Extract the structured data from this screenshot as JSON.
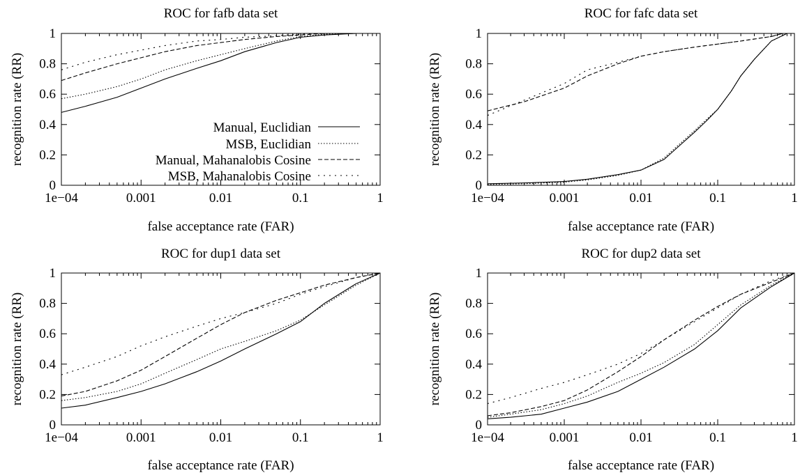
{
  "chart_data": [
    {
      "type": "line",
      "title": "ROC for fafb data set",
      "xlabel": "false acceptance rate (FAR)",
      "ylabel": "recognition rate (RR)",
      "xscale": "log",
      "xlim": [
        0.0001,
        1
      ],
      "ylim": [
        0,
        1
      ],
      "xticks": [
        "1e−04",
        "0.001",
        "0.01",
        "0.1",
        "1"
      ],
      "yticks": [
        "0",
        "0.2",
        "0.4",
        "0.6",
        "0.8",
        "1"
      ],
      "grid": false,
      "legend": "bottom-right",
      "series": [
        {
          "name": "Manual, Euclidian",
          "dash": "solid",
          "x": [
            0.0001,
            0.0002,
            0.0005,
            0.001,
            0.002,
            0.005,
            0.01,
            0.02,
            0.05,
            0.1,
            0.2,
            0.5,
            1
          ],
          "y": [
            0.48,
            0.52,
            0.58,
            0.64,
            0.7,
            0.77,
            0.82,
            0.88,
            0.94,
            0.975,
            0.99,
            1.0,
            1.0
          ]
        },
        {
          "name": "MSB, Euclidian",
          "dash": "dotted",
          "x": [
            0.0001,
            0.0002,
            0.0005,
            0.001,
            0.002,
            0.005,
            0.01,
            0.02,
            0.05,
            0.1,
            0.2,
            0.5,
            1
          ],
          "y": [
            0.57,
            0.6,
            0.65,
            0.7,
            0.76,
            0.82,
            0.86,
            0.9,
            0.95,
            0.98,
            0.995,
            1.0,
            1.0
          ]
        },
        {
          "name": "Manual, Mahanalobis Cosine",
          "dash": "dashed",
          "x": [
            0.0001,
            0.0002,
            0.0005,
            0.001,
            0.002,
            0.005,
            0.01,
            0.02,
            0.05,
            0.1,
            0.2,
            0.5,
            1
          ],
          "y": [
            0.69,
            0.74,
            0.8,
            0.84,
            0.88,
            0.92,
            0.94,
            0.96,
            0.98,
            0.99,
            1.0,
            1.0,
            1.0
          ]
        },
        {
          "name": "MSB, Mahanalobis Cosine",
          "dash": "sparse",
          "x": [
            0.0001,
            0.0002,
            0.0005,
            0.001,
            0.002,
            0.005,
            0.01,
            0.02,
            0.05,
            0.1,
            0.2,
            0.5,
            1
          ],
          "y": [
            0.76,
            0.81,
            0.86,
            0.89,
            0.92,
            0.95,
            0.96,
            0.975,
            0.985,
            0.995,
            1.0,
            1.0,
            1.0
          ]
        }
      ]
    },
    {
      "type": "line",
      "title": "ROC for fafc data set",
      "xlabel": "false acceptance rate (FAR)",
      "ylabel": "recognition rate (RR)",
      "xscale": "log",
      "xlim": [
        0.0001,
        1
      ],
      "ylim": [
        0,
        1
      ],
      "xticks": [
        "1e−04",
        "0.001",
        "0.01",
        "0.1",
        "1"
      ],
      "yticks": [
        "0",
        "0.2",
        "0.4",
        "0.6",
        "0.8",
        "1"
      ],
      "grid": false,
      "series": [
        {
          "name": "Manual, Euclidian",
          "dash": "solid",
          "x": [
            0.0001,
            0.0003,
            0.001,
            0.002,
            0.005,
            0.01,
            0.02,
            0.03,
            0.05,
            0.07,
            0.1,
            0.15,
            0.2,
            0.3,
            0.5,
            0.8,
            1
          ],
          "y": [
            0.01,
            0.015,
            0.025,
            0.04,
            0.07,
            0.1,
            0.17,
            0.25,
            0.35,
            0.42,
            0.5,
            0.62,
            0.72,
            0.83,
            0.95,
            1.0,
            1.0
          ]
        },
        {
          "name": "MSB, Euclidian",
          "dash": "dotted",
          "x": [
            0.0001,
            0.0003,
            0.001,
            0.002,
            0.005,
            0.01,
            0.02,
            0.03,
            0.05,
            0.07,
            0.1,
            0.15,
            0.2,
            0.3,
            0.5,
            0.8,
            1
          ],
          "y": [
            0.005,
            0.01,
            0.02,
            0.035,
            0.065,
            0.1,
            0.18,
            0.26,
            0.36,
            0.43,
            0.5,
            0.62,
            0.72,
            0.83,
            0.95,
            1.0,
            1.0
          ]
        },
        {
          "name": "Manual, Mahanalobis Cosine",
          "dash": "dashed",
          "x": [
            0.0001,
            0.0003,
            0.001,
            0.002,
            0.005,
            0.01,
            0.02,
            0.05,
            0.1,
            0.2,
            0.5,
            0.7,
            1
          ],
          "y": [
            0.49,
            0.55,
            0.64,
            0.72,
            0.8,
            0.85,
            0.88,
            0.91,
            0.93,
            0.95,
            0.98,
            1.0,
            1.0
          ]
        },
        {
          "name": "MSB, Mahanalobis Cosine",
          "dash": "sparse",
          "x": [
            0.0001,
            0.0003,
            0.001,
            0.002,
            0.005,
            0.01,
            0.02,
            0.05,
            0.1,
            0.2,
            0.5,
            0.7,
            1
          ],
          "y": [
            0.46,
            0.56,
            0.67,
            0.76,
            0.81,
            0.85,
            0.88,
            0.91,
            0.93,
            0.95,
            0.98,
            1.0,
            1.0
          ]
        }
      ]
    },
    {
      "type": "line",
      "title": "ROC for dup1 data set",
      "xlabel": "false acceptance rate (FAR)",
      "ylabel": "recognition rate (RR)",
      "xscale": "log",
      "xlim": [
        0.0001,
        1
      ],
      "ylim": [
        0,
        1
      ],
      "xticks": [
        "1e−04",
        "0.001",
        "0.01",
        "0.1",
        "1"
      ],
      "yticks": [
        "0",
        "0.2",
        "0.4",
        "0.6",
        "0.8",
        "1"
      ],
      "grid": false,
      "series": [
        {
          "name": "Manual, Euclidian",
          "dash": "solid",
          "x": [
            0.0001,
            0.0002,
            0.0005,
            0.001,
            0.002,
            0.005,
            0.01,
            0.02,
            0.05,
            0.1,
            0.2,
            0.5,
            1
          ],
          "y": [
            0.11,
            0.13,
            0.18,
            0.22,
            0.27,
            0.35,
            0.42,
            0.5,
            0.6,
            0.68,
            0.8,
            0.93,
            1.0
          ]
        },
        {
          "name": "MSB, Euclidian",
          "dash": "dotted",
          "x": [
            0.0001,
            0.0002,
            0.0005,
            0.001,
            0.002,
            0.005,
            0.01,
            0.02,
            0.05,
            0.1,
            0.2,
            0.5,
            1
          ],
          "y": [
            0.16,
            0.18,
            0.22,
            0.27,
            0.34,
            0.43,
            0.5,
            0.55,
            0.62,
            0.69,
            0.79,
            0.92,
            1.0
          ]
        },
        {
          "name": "Manual, Mahanalobis Cosine",
          "dash": "dashed",
          "x": [
            0.0001,
            0.0002,
            0.0005,
            0.001,
            0.002,
            0.005,
            0.01,
            0.02,
            0.05,
            0.1,
            0.2,
            0.5,
            1
          ],
          "y": [
            0.19,
            0.22,
            0.29,
            0.36,
            0.45,
            0.57,
            0.66,
            0.74,
            0.82,
            0.87,
            0.92,
            0.97,
            1.0
          ]
        },
        {
          "name": "MSB, Mahanalobis Cosine",
          "dash": "sparse",
          "x": [
            0.0001,
            0.0002,
            0.0005,
            0.001,
            0.002,
            0.005,
            0.01,
            0.02,
            0.05,
            0.1,
            0.2,
            0.5,
            1
          ],
          "y": [
            0.33,
            0.38,
            0.45,
            0.52,
            0.58,
            0.65,
            0.7,
            0.74,
            0.8,
            0.86,
            0.91,
            0.97,
            1.0
          ]
        }
      ]
    },
    {
      "type": "line",
      "title": "ROC for dup2 data set",
      "xlabel": "false acceptance rate (FAR)",
      "ylabel": "recognition rate (RR)",
      "xscale": "log",
      "xlim": [
        0.0001,
        1
      ],
      "ylim": [
        0,
        1
      ],
      "xticks": [
        "1e−04",
        "0.001",
        "0.01",
        "0.1",
        "1"
      ],
      "yticks": [
        "0",
        "0.2",
        "0.4",
        "0.6",
        "0.8",
        "1"
      ],
      "grid": false,
      "series": [
        {
          "name": "Manual, Euclidian",
          "dash": "solid",
          "x": [
            0.0001,
            0.0002,
            0.0005,
            0.001,
            0.002,
            0.005,
            0.01,
            0.02,
            0.05,
            0.1,
            0.2,
            0.5,
            1
          ],
          "y": [
            0.04,
            0.05,
            0.07,
            0.11,
            0.15,
            0.22,
            0.3,
            0.38,
            0.5,
            0.62,
            0.77,
            0.91,
            1.0
          ]
        },
        {
          "name": "MSB, Euclidian",
          "dash": "dotted",
          "x": [
            0.0001,
            0.0002,
            0.0005,
            0.001,
            0.002,
            0.005,
            0.01,
            0.02,
            0.05,
            0.1,
            0.2,
            0.5,
            1
          ],
          "y": [
            0.05,
            0.07,
            0.1,
            0.14,
            0.19,
            0.28,
            0.34,
            0.41,
            0.53,
            0.66,
            0.79,
            0.92,
            1.0
          ]
        },
        {
          "name": "Manual, Mahanalobis Cosine",
          "dash": "dashed",
          "x": [
            0.0001,
            0.0002,
            0.0005,
            0.001,
            0.002,
            0.005,
            0.01,
            0.02,
            0.05,
            0.1,
            0.2,
            0.5,
            1
          ],
          "y": [
            0.06,
            0.08,
            0.12,
            0.16,
            0.23,
            0.35,
            0.45,
            0.56,
            0.69,
            0.78,
            0.86,
            0.94,
            1.0
          ]
        },
        {
          "name": "MSB, Mahanalobis Cosine",
          "dash": "sparse",
          "x": [
            0.0001,
            0.0002,
            0.0005,
            0.001,
            0.002,
            0.005,
            0.01,
            0.02,
            0.05,
            0.1,
            0.2,
            0.5,
            1
          ],
          "y": [
            0.14,
            0.18,
            0.24,
            0.28,
            0.33,
            0.4,
            0.47,
            0.56,
            0.68,
            0.77,
            0.86,
            0.95,
            1.0
          ]
        }
      ]
    }
  ]
}
